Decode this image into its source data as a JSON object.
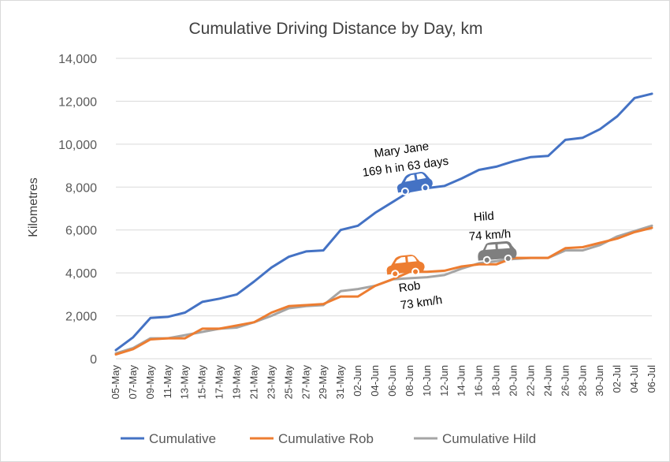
{
  "chart_data": {
    "type": "line",
    "title": "Cumulative Driving Distance by Day, km",
    "ylabel": "Kilometres",
    "xlabel": "",
    "ylim": [
      0,
      14000
    ],
    "yticks": [
      0,
      2000,
      4000,
      6000,
      8000,
      10000,
      12000,
      14000
    ],
    "ytick_labels": [
      "0",
      "2,000",
      "4,000",
      "6,000",
      "8,000",
      "10,000",
      "12,000",
      "14,000"
    ],
    "x_start": "2021-05-05",
    "x_end": "2021-07-06",
    "x": [
      "05-May",
      "07-May",
      "09-May",
      "11-May",
      "13-May",
      "15-May",
      "17-May",
      "19-May",
      "21-May",
      "23-May",
      "25-May",
      "27-May",
      "29-May",
      "31-May",
      "02-Jun",
      "04-Jun",
      "06-Jun",
      "08-Jun",
      "10-Jun",
      "12-Jun",
      "14-Jun",
      "16-Jun",
      "18-Jun",
      "20-Jun",
      "22-Jun",
      "24-Jun",
      "26-Jun",
      "28-Jun",
      "30-Jun",
      "02-Jul",
      "04-Jul",
      "06-Jul"
    ],
    "grid": true,
    "legend_position": "bottom",
    "series": [
      {
        "name": "Cumulative",
        "color": "#4472C4",
        "values": [
          400,
          1000,
          1900,
          1950,
          2150,
          2650,
          2800,
          3000,
          3600,
          4250,
          4750,
          5000,
          5050,
          6000,
          6200,
          6800,
          7300,
          7800,
          7950,
          8050,
          8400,
          8800,
          8950,
          9200,
          9400,
          9450,
          10200,
          10300,
          10700,
          11300,
          12150,
          12350
        ]
      },
      {
        "name": "Cumulative Rob",
        "color": "#ED7D31",
        "values": [
          200,
          450,
          900,
          950,
          950,
          1400,
          1400,
          1550,
          1700,
          2150,
          2450,
          2500,
          2550,
          2900,
          2900,
          3400,
          3700,
          4050,
          4050,
          4100,
          4300,
          4400,
          4400,
          4700,
          4700,
          4700,
          5150,
          5200,
          5400,
          5600,
          5900,
          6100
        ]
      },
      {
        "name": "Cumulative Hild",
        "color": "#A5A5A5",
        "values": [
          250,
          500,
          950,
          950,
          1100,
          1250,
          1400,
          1450,
          1700,
          2000,
          2350,
          2450,
          2500,
          3150,
          3250,
          3400,
          3700,
          3750,
          3800,
          3900,
          4200,
          4450,
          4550,
          4650,
          4700,
          4700,
          5050,
          5050,
          5300,
          5700,
          5950,
          6200
        ]
      }
    ],
    "annotations": [
      {
        "id": "mary",
        "lines": [
          "Mary Jane",
          "169 h in 63 days"
        ],
        "icon": "car-icon",
        "icon_color": "#4472C4"
      },
      {
        "id": "hild",
        "lines": [
          "Hild",
          "74 km/h"
        ],
        "icon": "car-icon",
        "icon_color": "#7F7F7F"
      },
      {
        "id": "rob",
        "lines": [
          "Rob",
          "73 km/h"
        ],
        "icon": "car-icon",
        "icon_color": "#ED7D31"
      }
    ]
  }
}
